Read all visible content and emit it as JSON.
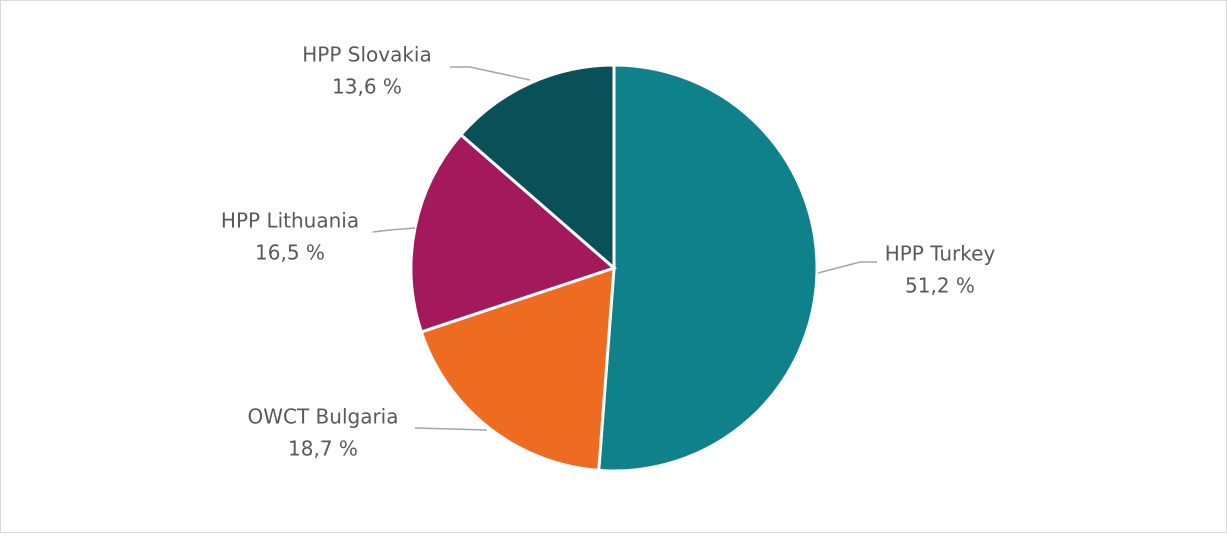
{
  "chart_data": {
    "type": "pie",
    "categories": [
      "HPP Turkey",
      "OWCT Bulgaria",
      "HPP Lithuania",
      "HPP Slovakia"
    ],
    "values": [
      51.2,
      18.7,
      16.5,
      13.6
    ],
    "value_labels": [
      "51,2 %",
      "18,7 %",
      "16,5 %",
      "13,6 %"
    ],
    "colors": [
      "#0f818b",
      "#ee6c22",
      "#a3195b",
      "#0a5058"
    ]
  }
}
